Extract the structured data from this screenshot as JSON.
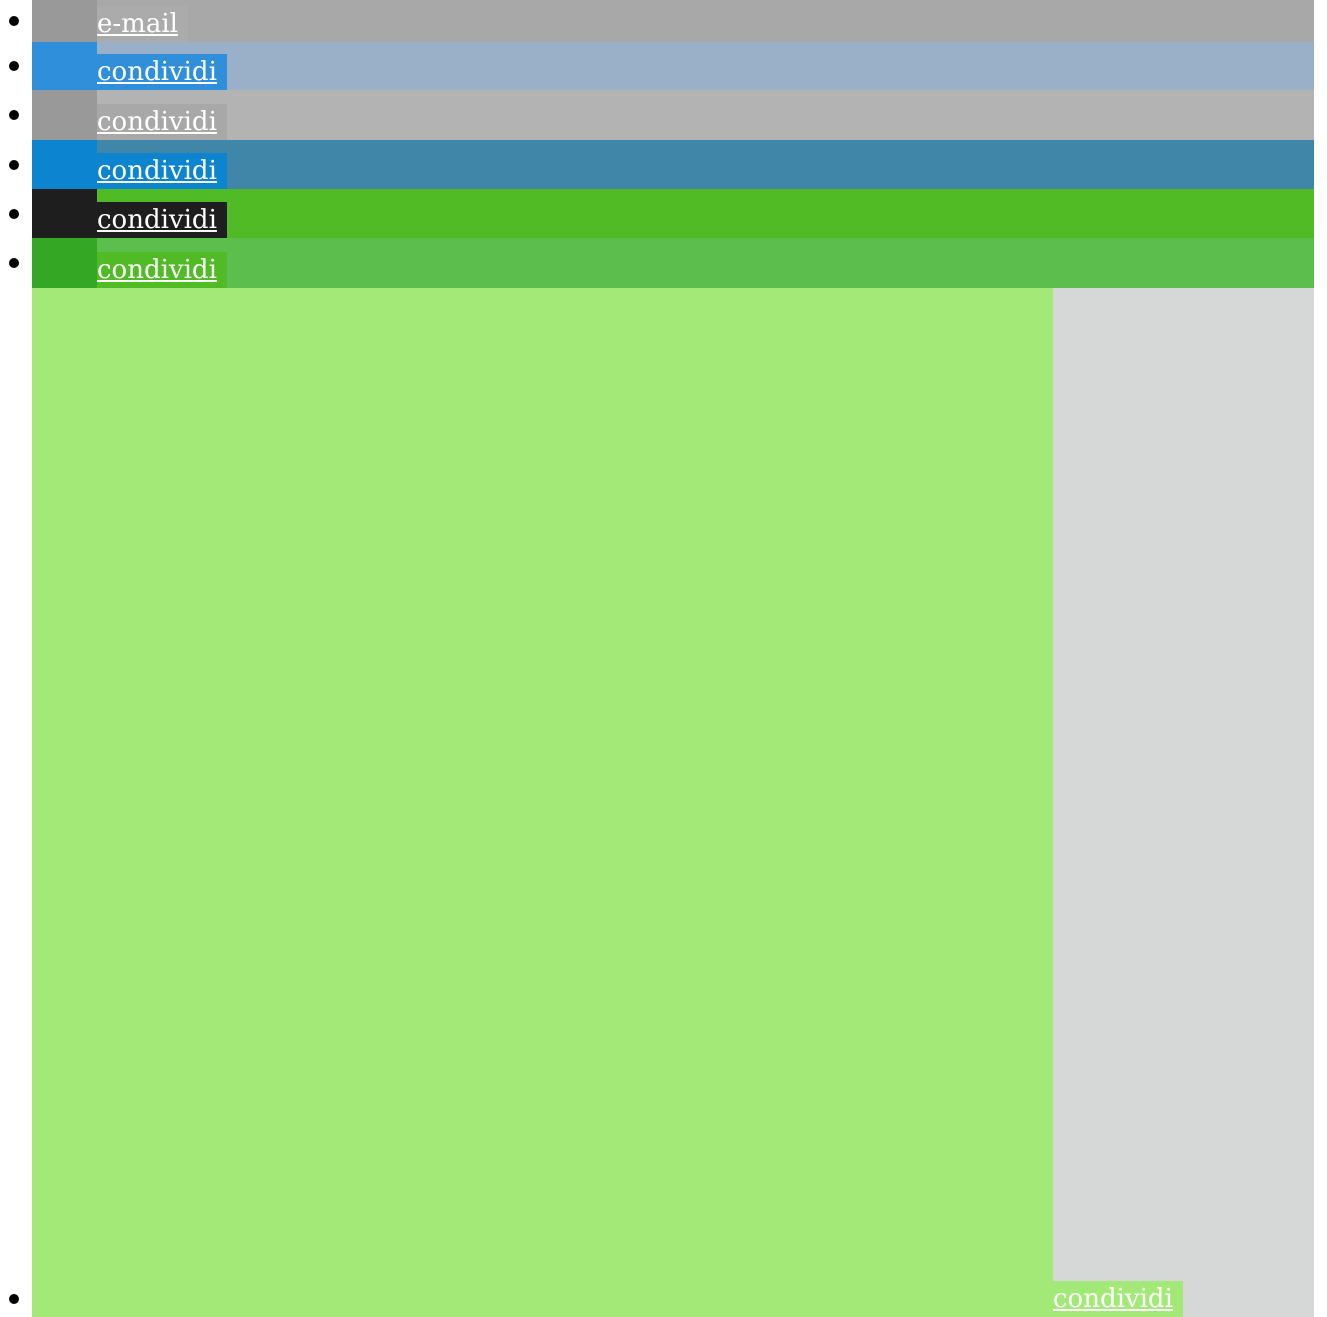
{
  "share_list": {
    "items": [
      {
        "label": "e-mail"
      },
      {
        "label": "condividi"
      },
      {
        "label": "condividi"
      },
      {
        "label": "condividi"
      },
      {
        "label": "condividi"
      },
      {
        "label": "condividi"
      },
      {
        "label": "condividi"
      }
    ]
  }
}
